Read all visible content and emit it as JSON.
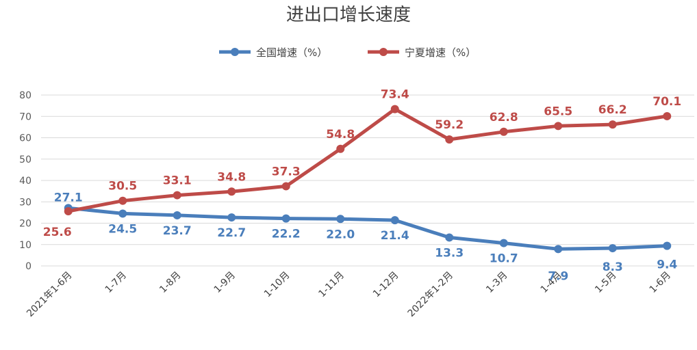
{
  "chart_data": {
    "type": "line",
    "title": "进出口增长速度",
    "categories": [
      "2021年1-6月",
      "1-7月",
      "1-8月",
      "1-9月",
      "1-10月",
      "1-11月",
      "1-12月",
      "2022年1-2月",
      "1-3月",
      "1-4月",
      "1-5月",
      "1-6月"
    ],
    "series": [
      {
        "name": "全国增速（%）",
        "color": "#4a7ebb",
        "values": [
          27.1,
          24.5,
          23.7,
          22.7,
          22.2,
          22.0,
          21.4,
          13.3,
          10.7,
          7.9,
          8.3,
          9.4
        ]
      },
      {
        "name": "宁夏增速（%）",
        "color": "#be4b48",
        "values": [
          25.6,
          30.5,
          33.1,
          34.8,
          37.3,
          54.8,
          73.4,
          59.2,
          62.8,
          65.5,
          66.2,
          70.1
        ]
      }
    ],
    "ylim": [
      0,
      80
    ],
    "yticks": [
      0,
      10,
      20,
      30,
      40,
      50,
      60,
      70,
      80
    ],
    "grid": true,
    "legend": "top-center"
  }
}
